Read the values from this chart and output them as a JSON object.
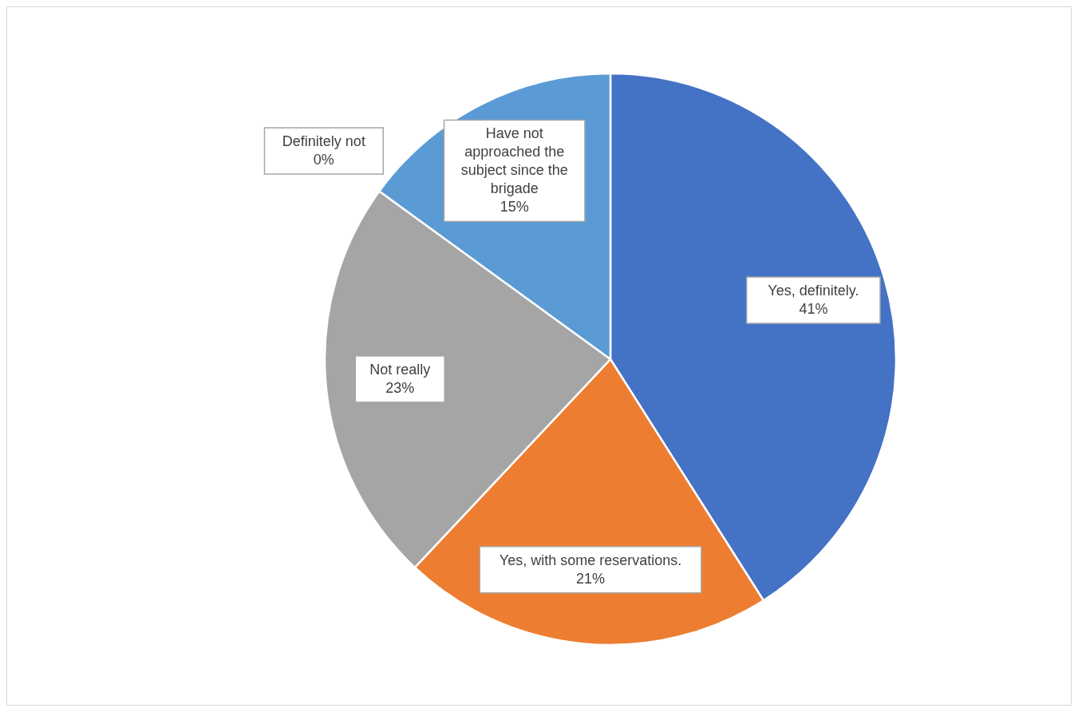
{
  "chart_data": {
    "type": "pie",
    "categories": [
      "Yes, definitely.",
      "Yes, with some reservations.",
      "Not really",
      "Definitely not",
      "Have not approached the subject since the brigade"
    ],
    "values": [
      41,
      21,
      23,
      0,
      15
    ],
    "colors": [
      "#4472c4",
      "#ed7d31",
      "#a5a5a5",
      "#ffc000",
      "#5b9bd5"
    ],
    "value_labels": [
      "41%",
      "21%",
      "23%",
      "0%",
      "15%"
    ]
  }
}
